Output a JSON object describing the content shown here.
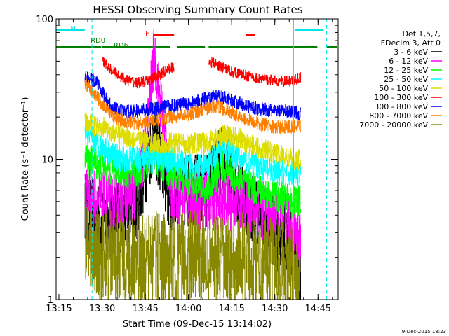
{
  "chart_data": {
    "type": "line",
    "title": "HESSI Observing Summary Count Rates",
    "xlabel": "Start Time (09-Dec-15 13:14:02)",
    "ylabel": "Count Rate (s⁻¹ detector⁻¹)",
    "y_scale": "log",
    "ylim": [
      1,
      100
    ],
    "xlim": [
      "13:14:02",
      "14:52:00"
    ],
    "x_ticks": [
      "13:15",
      "13:30",
      "13:45",
      "14:00",
      "14:15",
      "14:30",
      "14:45"
    ],
    "y_ticks": [
      "1",
      "10",
      "100"
    ],
    "timestamp": "9-Dec-2015 18:23",
    "legend": {
      "position": "right",
      "header": [
        "Det 1,5,7,",
        "FDecim 3, Att 0"
      ],
      "entries": [
        {
          "label": "3 - 6 keV",
          "color": "#000000"
        },
        {
          "label": "6 - 12 keV",
          "color": "#ff00ff"
        },
        {
          "label": "12 - 25 keV",
          "color": "#00ff00"
        },
        {
          "label": "25 - 50 keV",
          "color": "#00ffff"
        },
        {
          "label": "50 - 100 keV",
          "color": "#dddd00"
        },
        {
          "label": "100 - 300 keV",
          "color": "#ff0000"
        },
        {
          "label": "300 - 800 keV",
          "color": "#0000ff"
        },
        {
          "label": "800 - 7000 keV",
          "color": "#ff8000"
        },
        {
          "label": "7000 - 20000 keV",
          "color": "#888800"
        }
      ]
    },
    "annotations": [
      {
        "text": "N",
        "color": "#00e5e5",
        "x": "13:19"
      },
      {
        "text": "RD0",
        "color": "#008000",
        "x": "13:26"
      },
      {
        "text": "RD6",
        "color": "#008000",
        "x": "13:34"
      },
      {
        "text": "F",
        "color": "#ff0000",
        "x": "13:45"
      }
    ],
    "bars": {
      "saa": {
        "color": "#00e5e5",
        "intervals": [
          [
            "13:14:02",
            "13:24:00"
          ],
          [
            "14:37:00",
            "14:47:00"
          ]
        ]
      },
      "flare": {
        "color": "#ff0000",
        "intervals": [
          [
            "13:48:00",
            "13:55:00"
          ],
          [
            "14:20:00",
            "14:23:00"
          ]
        ]
      },
      "decim": {
        "color": "#008000",
        "intervals": [
          [
            "13:14:02",
            "13:30:00"
          ],
          [
            "13:30:00",
            "13:54:00"
          ],
          [
            "13:56:00",
            "14:06:00"
          ],
          [
            "14:07:00",
            "14:45:00"
          ],
          [
            "14:48:00",
            "14:52:00"
          ]
        ]
      }
    },
    "vlines": [
      {
        "x": "13:14:02",
        "style": "solid",
        "color": "#00e5e5"
      },
      {
        "x": "13:26:30",
        "style": "dashed",
        "color": "#00e5e5"
      },
      {
        "x": "14:36:30",
        "style": "solid",
        "color": "#00e5e5"
      },
      {
        "x": "14:48:00",
        "style": "dashed",
        "color": "#00e5e5"
      }
    ],
    "data_intervals": [
      [
        "13:24:00",
        "13:55:00"
      ],
      [
        "13:55:00",
        "14:06:00"
      ],
      [
        "14:06:00",
        "14:39:00"
      ]
    ],
    "series": [
      {
        "name": "3 - 6 keV",
        "color": "#000000",
        "x": [
          "13:24",
          "13:30",
          "13:36",
          "13:42",
          "13:48",
          "13:54",
          "14:00",
          "14:06",
          "14:12",
          "14:18",
          "14:24",
          "14:30",
          "14:36",
          "14:39"
        ],
        "y": [
          4.5,
          3.5,
          4,
          5,
          15,
          5,
          6,
          6,
          10,
          6,
          4,
          3,
          2.5,
          1.5
        ]
      },
      {
        "name": "6 - 12 keV",
        "color": "#ff00ff",
        "x": [
          "13:24",
          "13:30",
          "13:36",
          "13:42",
          "13:45",
          "13:48",
          "13:51",
          "13:54",
          "14:00",
          "14:06",
          "14:12",
          "14:18",
          "14:24",
          "14:30",
          "14:36",
          "14:39"
        ],
        "y": [
          6,
          5,
          5,
          6,
          12,
          55,
          20,
          6,
          5,
          5,
          5,
          5,
          4.5,
          4,
          3.5,
          3
        ]
      },
      {
        "name": "12 - 25 keV",
        "color": "#00ff00",
        "x": [
          "13:24",
          "13:30",
          "13:36",
          "13:42",
          "13:48",
          "13:54",
          "14:00",
          "14:06",
          "14:12",
          "14:18",
          "14:24",
          "14:30",
          "14:36",
          "14:39"
        ],
        "y": [
          10,
          9,
          8,
          8,
          10,
          8,
          7,
          6,
          9,
          7,
          6,
          5.5,
          5,
          5
        ]
      },
      {
        "name": "25 - 50 keV",
        "color": "#00ffff",
        "x": [
          "13:24",
          "13:30",
          "13:36",
          "13:42",
          "13:48",
          "13:54",
          "14:00",
          "14:06",
          "14:12",
          "14:18",
          "14:24",
          "14:30",
          "14:36",
          "14:39"
        ],
        "y": [
          15,
          12,
          10,
          10,
          10,
          10,
          9,
          9,
          12,
          10,
          9,
          8,
          8,
          8
        ]
      },
      {
        "name": "50 - 100 keV",
        "color": "#dddd00",
        "x": [
          "13:24",
          "13:30",
          "13:36",
          "13:42",
          "13:48",
          "13:54",
          "14:00",
          "14:06",
          "14:12",
          "14:18",
          "14:24",
          "14:30",
          "14:36",
          "14:39"
        ],
        "y": [
          18,
          17,
          15,
          14,
          13,
          13,
          13,
          13,
          15,
          14,
          12,
          11,
          10,
          10
        ]
      },
      {
        "name": "100 - 300 keV",
        "color": "#ff0000",
        "x": [
          "13:30",
          "13:34",
          "13:38",
          "13:42",
          "13:46",
          "13:50",
          "13:54",
          "13:55",
          "14:06",
          "14:07",
          "14:11",
          "14:15",
          "14:19",
          "14:23",
          "14:27",
          "14:31",
          "14:35",
          "14:39"
        ],
        "y": [
          50,
          42,
          37,
          35,
          36,
          40,
          45,
          45,
          null,
          50,
          46,
          42,
          40,
          38,
          37,
          36,
          36,
          38
        ]
      },
      {
        "name": "300 - 800 keV",
        "color": "#0000ff",
        "x": [
          "13:24",
          "13:28",
          "13:32",
          "13:36",
          "13:42",
          "13:48",
          "13:54",
          "14:00",
          "14:06",
          "14:10",
          "14:14",
          "14:18",
          "14:24",
          "14:30",
          "14:36",
          "14:39"
        ],
        "y": [
          38,
          36,
          25,
          22,
          22,
          23,
          24,
          25,
          27,
          28,
          27,
          25,
          23,
          22,
          22,
          21
        ]
      },
      {
        "name": "800 - 7000 keV",
        "color": "#ff8000",
        "x": [
          "13:24",
          "13:28",
          "13:32",
          "13:36",
          "13:42",
          "13:48",
          "13:54",
          "14:00",
          "14:06",
          "14:10",
          "14:14",
          "14:18",
          "14:24",
          "14:30",
          "14:36",
          "14:39"
        ],
        "y": [
          35,
          28,
          22,
          19,
          18,
          19,
          20,
          21,
          23,
          24,
          22,
          20,
          18,
          17,
          17,
          17
        ]
      },
      {
        "name": "7000 - 20000 keV",
        "color": "#888800",
        "x": [
          "13:24",
          "13:30",
          "13:36",
          "13:42",
          "13:48",
          "13:54",
          "14:00",
          "14:06",
          "14:12",
          "14:18",
          "14:24",
          "14:30",
          "14:36",
          "14:39"
        ],
        "y": [
          3,
          2,
          2,
          1.8,
          2,
          1.8,
          2,
          2,
          1.8,
          2,
          1.8,
          1.8,
          1.5,
          1.5
        ]
      }
    ]
  }
}
